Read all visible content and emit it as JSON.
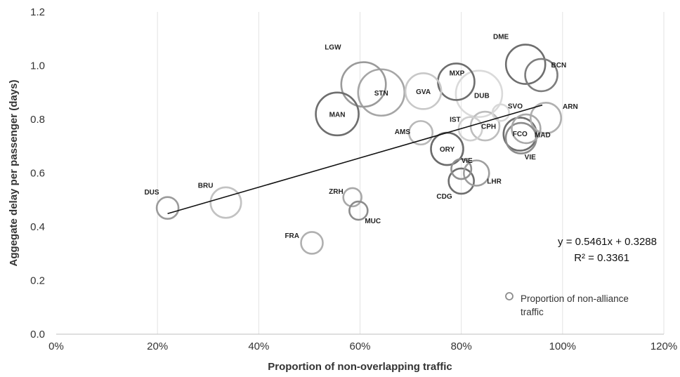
{
  "chart_data": {
    "type": "scatter",
    "subtype": "bubble",
    "title": "",
    "xlabel": "Proportion of non-overlapping traffic",
    "ylabel": "Aggegate delay per passenger (days)",
    "xlim": [
      0,
      1.2
    ],
    "ylim": [
      0,
      1.2
    ],
    "x_tick_labels": [
      "0%",
      "20%",
      "40%",
      "60%",
      "80%",
      "100%",
      "120%"
    ],
    "y_tick_labels": [
      "0.0",
      "0.2",
      "0.4",
      "0.6",
      "0.8",
      "1.0",
      "1.2"
    ],
    "grid": "vertical",
    "legend": {
      "position": "bottom-right",
      "lines": [
        "Proportion of non-alliance",
        "traffic"
      ]
    },
    "size_series": "Proportion of non-alliance traffic",
    "trendline": {
      "equation": "y = 0.5461x + 0.3288",
      "r2": "R² = 0.3361",
      "slope": 0.5461,
      "intercept": 0.3288,
      "x_range": [
        0.22,
        0.96
      ]
    },
    "points": [
      {
        "label": "DUS",
        "x": 0.22,
        "y": 0.47,
        "size": 0.3,
        "shade": "#9b9b9b"
      },
      {
        "label": "BRU",
        "x": 0.335,
        "y": 0.49,
        "size": 0.55,
        "shade": "#c2c2c2"
      },
      {
        "label": "FRA",
        "x": 0.505,
        "y": 0.34,
        "size": 0.3,
        "shade": "#b0b0b0"
      },
      {
        "label": "ZRH",
        "x": 0.585,
        "y": 0.51,
        "size": 0.2,
        "shade": "#a8a8a8"
      },
      {
        "label": "MUC",
        "x": 0.597,
        "y": 0.46,
        "size": 0.2,
        "shade": "#8c8c8c"
      },
      {
        "label": "MAN",
        "x": 0.555,
        "y": 0.82,
        "size": 0.9,
        "shade": "#6e6e6e"
      },
      {
        "label": "LGW",
        "x": 0.607,
        "y": 0.93,
        "size": 0.95,
        "shade": "#9a9a9a"
      },
      {
        "label": "STN",
        "x": 0.642,
        "y": 0.9,
        "size": 1.0,
        "shade": "#a6a6a6"
      },
      {
        "label": "GVA",
        "x": 0.725,
        "y": 0.905,
        "size": 0.7,
        "shade": "#c8c8c8"
      },
      {
        "label": "AMS",
        "x": 0.72,
        "y": 0.75,
        "size": 0.35,
        "shade": "#b8b8b8"
      },
      {
        "label": "MXP",
        "x": 0.79,
        "y": 0.94,
        "size": 0.72,
        "shade": "#6e6e6e"
      },
      {
        "label": "DUB",
        "x": 0.835,
        "y": 0.895,
        "size": 1.0,
        "shade": "#dadada"
      },
      {
        "label": "ORY",
        "x": 0.772,
        "y": 0.69,
        "size": 0.6,
        "shade": "#6b6b6b"
      },
      {
        "label": "IST",
        "x": 0.818,
        "y": 0.765,
        "size": 0.35,
        "shade": "#cfcfcf"
      },
      {
        "label": "CPH",
        "x": 0.847,
        "y": 0.775,
        "size": 0.5,
        "shade": "#bdbdbd"
      },
      {
        "label": "SVO",
        "x": 0.878,
        "y": 0.825,
        "size": 0.15,
        "shade": "#d8d8d8"
      },
      {
        "label": "VIE",
        "x": 0.8,
        "y": 0.615,
        "size": 0.25,
        "shade": "#909090"
      },
      {
        "label": "CDG",
        "x": 0.8,
        "y": 0.57,
        "size": 0.4,
        "shade": "#6e6e6e"
      },
      {
        "label": "LHR",
        "x": 0.83,
        "y": 0.6,
        "size": 0.4,
        "shade": "#9e9e9e"
      },
      {
        "label": "DME",
        "x": 0.927,
        "y": 1.005,
        "size": 0.8,
        "shade": "#6e6e6e"
      },
      {
        "label": "BCN",
        "x": 0.958,
        "y": 0.965,
        "size": 0.6,
        "shade": "#7e7e7e"
      },
      {
        "label": "ARN",
        "x": 0.967,
        "y": 0.805,
        "size": 0.55,
        "shade": "#b0b0b0"
      },
      {
        "label": "MAD",
        "x": 0.928,
        "y": 0.765,
        "size": 0.5,
        "shade": "#a8a8a8"
      },
      {
        "label": "FCO",
        "x": 0.916,
        "y": 0.745,
        "size": 0.62,
        "shade": "#6e6e6e"
      },
      {
        "label": "VIE",
        "x": 0.918,
        "y": 0.73,
        "size": 0.55,
        "shade": "#8c8c8c"
      }
    ]
  }
}
